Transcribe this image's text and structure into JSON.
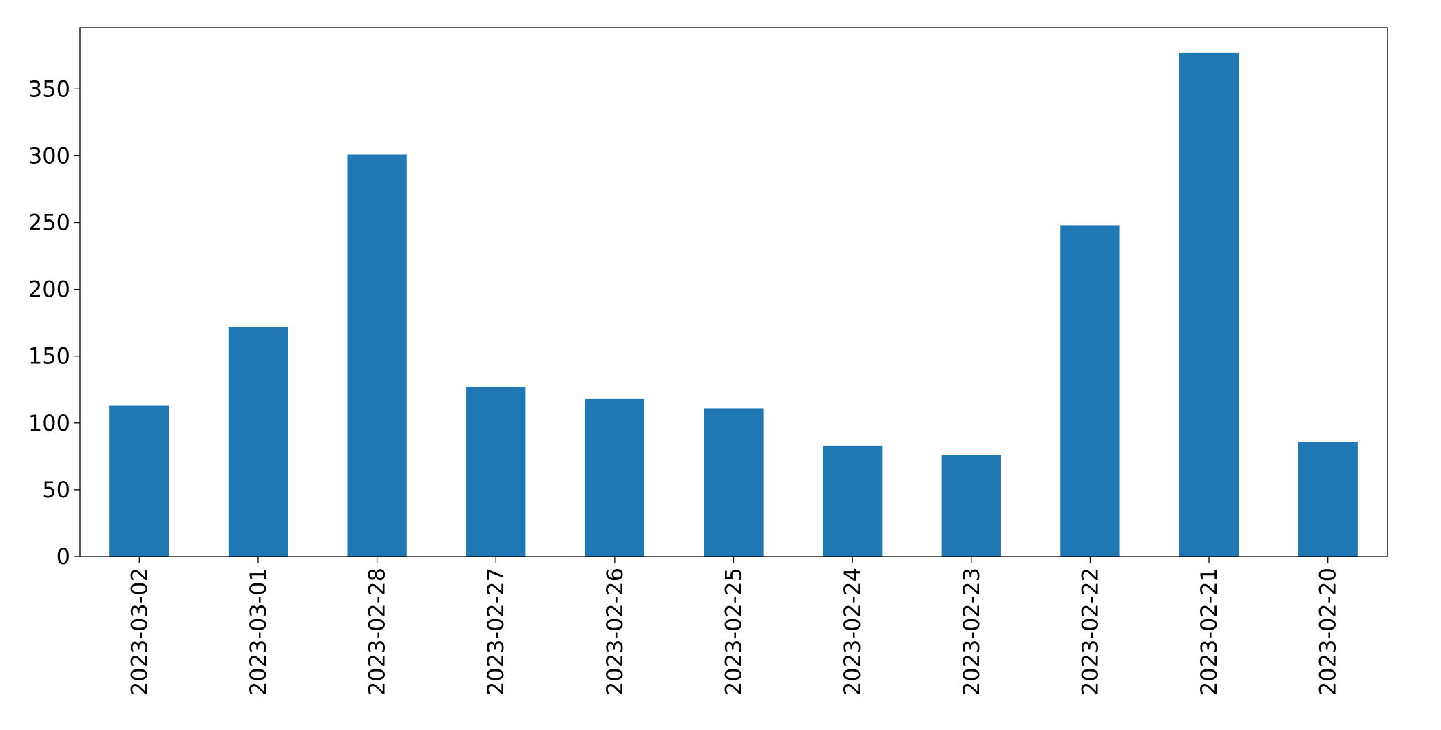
{
  "chart_data": {
    "type": "bar",
    "categories": [
      "2023-03-02",
      "2023-03-01",
      "2023-02-28",
      "2023-02-27",
      "2023-02-26",
      "2023-02-25",
      "2023-02-24",
      "2023-02-23",
      "2023-02-22",
      "2023-02-21",
      "2023-02-20"
    ],
    "values": [
      113,
      172,
      301,
      127,
      118,
      111,
      83,
      76,
      248,
      377,
      86
    ],
    "color": "#1f77b4",
    "ylim": [
      0,
      396
    ],
    "yticks": [
      0,
      50,
      100,
      150,
      200,
      250,
      300,
      350
    ],
    "grid": false
  }
}
